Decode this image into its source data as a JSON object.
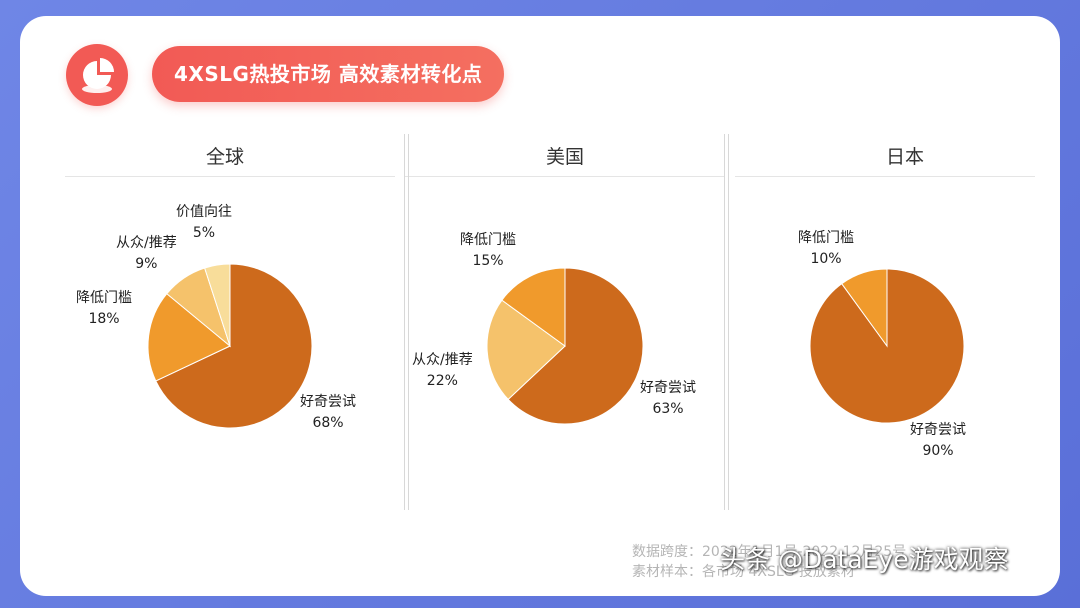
{
  "title": "4XSLG热投市场 高效素材转化点",
  "colors": {
    "primary": "#cd6a1c",
    "secondary": "#f09a2c",
    "tertiary": "#f5c26b",
    "quaternary": "#f8dd9a",
    "accent": "#f25a55"
  },
  "icon": "pie-chart-icon",
  "chart_data": [
    {
      "type": "pie",
      "title": "全球",
      "slices": [
        {
          "label": "好奇尝试",
          "value": 68,
          "text": "68%"
        },
        {
          "label": "降低门槛",
          "value": 18,
          "text": "18%"
        },
        {
          "label": "从众/推荐",
          "value": 9,
          "text": "9%"
        },
        {
          "label": "价值向往",
          "value": 5,
          "text": "5%"
        }
      ]
    },
    {
      "type": "pie",
      "title": "美国",
      "slices": [
        {
          "label": "好奇尝试",
          "value": 63,
          "text": "63%"
        },
        {
          "label": "从众/推荐",
          "value": 22,
          "text": "22%"
        },
        {
          "label": "降低门槛",
          "value": 15,
          "text": "15%"
        }
      ]
    },
    {
      "type": "pie",
      "title": "日本",
      "slices": [
        {
          "label": "好奇尝试",
          "value": 90,
          "text": "90%"
        },
        {
          "label": "降低门槛",
          "value": 10,
          "text": "10%"
        }
      ]
    }
  ],
  "footer": {
    "line1": "数据跨度：2022年1月1号-2022.12月25号",
    "line2": "素材样本：各市场 4XSLG 投放素材"
  },
  "watermark": "头条 @DataEye游戏观察"
}
